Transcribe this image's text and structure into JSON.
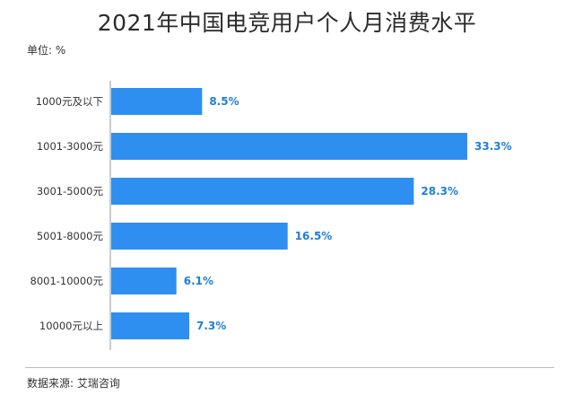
{
  "title": "2021年中国电竞用户个人月消费水平",
  "unit_label": "单位: %",
  "source": "数据来源: 艾瑞咨询",
  "colors": {
    "bar": "#2E8FF0",
    "label": "#1E7FD8",
    "axis": "#999999"
  },
  "chart_data": {
    "type": "bar",
    "orientation": "horizontal",
    "title": "2021年中国电竞用户个人月消费水平",
    "categories": [
      "1000元及以下",
      "1001-3000元",
      "3001-5000元",
      "5001-8000元",
      "8001-10000元",
      "10000元以上"
    ],
    "values": [
      8.5,
      33.3,
      28.3,
      16.5,
      6.1,
      7.3
    ],
    "value_labels": [
      "8.5%",
      "33.3%",
      "28.3%",
      "16.5%",
      "6.1%",
      "7.3%"
    ],
    "xlim": [
      0,
      35
    ],
    "grid": false,
    "legend": "none"
  }
}
